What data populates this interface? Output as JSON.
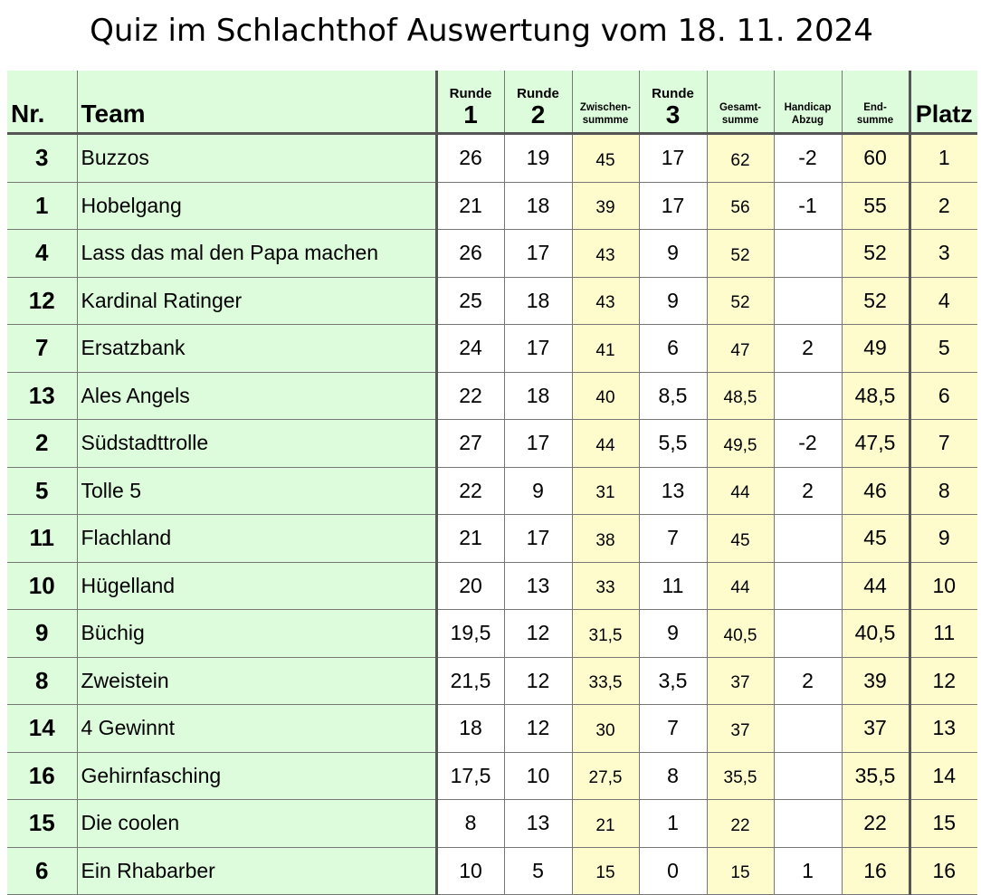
{
  "title": "Quiz im Schlachthof Auswertung vom 18. 11. 2024",
  "headers": {
    "nr": "Nr.",
    "team": "Team",
    "r1_top": "Runde",
    "r1": "1",
    "r2_top": "Runde",
    "r2": "2",
    "zw1": "Zwischen-",
    "zw2": "summme",
    "r3_top": "Runde",
    "r3": "3",
    "ges1": "Gesamt-",
    "ges2": "summe",
    "hc1": "Handicap",
    "hc2": "Abzug",
    "end1": "End-",
    "end2": "summe",
    "platz": "Platz"
  },
  "colors": {
    "green": "#dcfcdc",
    "yellow": "#fefccc"
  },
  "rows": [
    {
      "nr": "3",
      "team": "Buzzos",
      "r1": "26",
      "r2": "19",
      "zw": "45",
      "r3": "17",
      "ges": "62",
      "hc": "-2",
      "end": "60",
      "platz": "1"
    },
    {
      "nr": "1",
      "team": "Hobelgang",
      "r1": "21",
      "r2": "18",
      "zw": "39",
      "r3": "17",
      "ges": "56",
      "hc": "-1",
      "end": "55",
      "platz": "2"
    },
    {
      "nr": "4",
      "team": "Lass das mal den Papa machen",
      "r1": "26",
      "r2": "17",
      "zw": "43",
      "r3": "9",
      "ges": "52",
      "hc": "",
      "end": "52",
      "platz": "3"
    },
    {
      "nr": "12",
      "team": "Kardinal Ratinger",
      "r1": "25",
      "r2": "18",
      "zw": "43",
      "r3": "9",
      "ges": "52",
      "hc": "",
      "end": "52",
      "platz": "4"
    },
    {
      "nr": "7",
      "team": "Ersatzbank",
      "r1": "24",
      "r2": "17",
      "zw": "41",
      "r3": "6",
      "ges": "47",
      "hc": "2",
      "end": "49",
      "platz": "5"
    },
    {
      "nr": "13",
      "team": "Ales Angels",
      "r1": "22",
      "r2": "18",
      "zw": "40",
      "r3": "8,5",
      "ges": "48,5",
      "hc": "",
      "end": "48,5",
      "platz": "6"
    },
    {
      "nr": "2",
      "team": "Südstadttrolle",
      "r1": "27",
      "r2": "17",
      "zw": "44",
      "r3": "5,5",
      "ges": "49,5",
      "hc": "-2",
      "end": "47,5",
      "platz": "7"
    },
    {
      "nr": "5",
      "team": "Tolle 5",
      "r1": "22",
      "r2": "9",
      "zw": "31",
      "r3": "13",
      "ges": "44",
      "hc": "2",
      "end": "46",
      "platz": "8"
    },
    {
      "nr": "11",
      "team": "Flachland",
      "r1": "21",
      "r2": "17",
      "zw": "38",
      "r3": "7",
      "ges": "45",
      "hc": "",
      "end": "45",
      "platz": "9"
    },
    {
      "nr": "10",
      "team": "Hügelland",
      "r1": "20",
      "r2": "13",
      "zw": "33",
      "r3": "11",
      "ges": "44",
      "hc": "",
      "end": "44",
      "platz": "10"
    },
    {
      "nr": "9",
      "team": "Büchig",
      "r1": "19,5",
      "r2": "12",
      "zw": "31,5",
      "r3": "9",
      "ges": "40,5",
      "hc": "",
      "end": "40,5",
      "platz": "11"
    },
    {
      "nr": "8",
      "team": "Zweistein",
      "r1": "21,5",
      "r2": "12",
      "zw": "33,5",
      "r3": "3,5",
      "ges": "37",
      "hc": "2",
      "end": "39",
      "platz": "12"
    },
    {
      "nr": "14",
      "team": "4 Gewinnt",
      "r1": "18",
      "r2": "12",
      "zw": "30",
      "r3": "7",
      "ges": "37",
      "hc": "",
      "end": "37",
      "platz": "13"
    },
    {
      "nr": "16",
      "team": "Gehirnfasching",
      "r1": "17,5",
      "r2": "10",
      "zw": "27,5",
      "r3": "8",
      "ges": "35,5",
      "hc": "",
      "end": "35,5",
      "platz": "14"
    },
    {
      "nr": "15",
      "team": "Die coolen",
      "r1": "8",
      "r2": "13",
      "zw": "21",
      "r3": "1",
      "ges": "22",
      "hc": "",
      "end": "22",
      "platz": "15"
    },
    {
      "nr": "6",
      "team": "Ein Rhabarber",
      "r1": "10",
      "r2": "5",
      "zw": "15",
      "r3": "0",
      "ges": "15",
      "hc": "1",
      "end": "16",
      "platz": "16"
    }
  ]
}
